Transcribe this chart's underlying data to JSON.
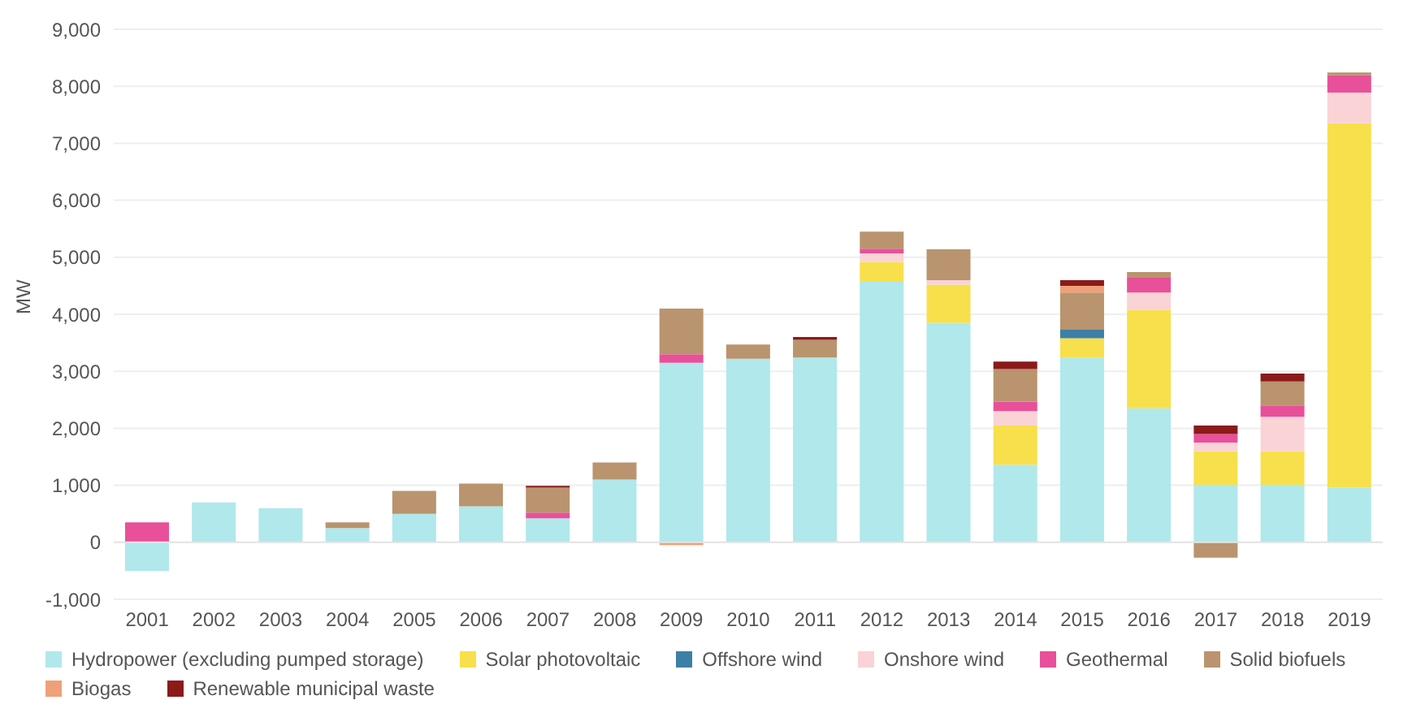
{
  "chart_data": {
    "type": "bar",
    "stacked": true,
    "ylabel": "MW",
    "categories": [
      "2001",
      "2002",
      "2003",
      "2004",
      "2005",
      "2006",
      "2007",
      "2008",
      "2009",
      "2010",
      "2011",
      "2012",
      "2013",
      "2014",
      "2015",
      "2016",
      "2017",
      "2018",
      "2019"
    ],
    "series": [
      {
        "name": "Hydropower (excluding pumped storage)",
        "color": "#b0e8ec",
        "values": [
          -500,
          700,
          600,
          250,
          500,
          630,
          420,
          1100,
          3150,
          3220,
          3240,
          4570,
          3850,
          1360,
          3240,
          2350,
          1010,
          1010,
          960
        ]
      },
      {
        "name": "Solar photovoltaic",
        "color": "#f7e04b",
        "values": [
          null,
          null,
          null,
          null,
          null,
          null,
          null,
          null,
          null,
          null,
          null,
          350,
          670,
          690,
          340,
          1730,
          590,
          590,
          6390
        ]
      },
      {
        "name": "Offshore wind",
        "color": "#3d7fa6",
        "values": [
          null,
          null,
          null,
          null,
          null,
          null,
          null,
          null,
          null,
          null,
          null,
          null,
          null,
          null,
          150,
          null,
          null,
          null,
          null
        ]
      },
      {
        "name": "Onshore wind",
        "color": "#f9d3d6",
        "values": [
          null,
          null,
          null,
          null,
          null,
          null,
          null,
          null,
          null,
          null,
          null,
          150,
          80,
          250,
          null,
          300,
          150,
          600,
          540
        ]
      },
      {
        "name": "Geothermal",
        "color": "#e8509a",
        "values": [
          350,
          null,
          null,
          null,
          null,
          null,
          100,
          null,
          150,
          null,
          null,
          80,
          null,
          170,
          null,
          260,
          150,
          200,
          300
        ]
      },
      {
        "name": "Solid biofuels",
        "color": "#b9946e",
        "values": [
          null,
          null,
          null,
          100,
          400,
          400,
          440,
          300,
          800,
          250,
          310,
          300,
          540,
          570,
          650,
          100,
          -270,
          420,
          50
        ]
      },
      {
        "name": "Biogas",
        "color": "#f0a078",
        "values": [
          null,
          null,
          null,
          null,
          null,
          null,
          null,
          null,
          -50,
          null,
          null,
          null,
          null,
          null,
          120,
          null,
          null,
          null,
          null
        ]
      },
      {
        "name": "Renewable municipal waste",
        "color": "#8b1a1a",
        "values": [
          null,
          null,
          null,
          null,
          null,
          null,
          30,
          null,
          null,
          null,
          50,
          null,
          null,
          130,
          100,
          null,
          150,
          140,
          null
        ]
      }
    ],
    "ylim": [
      -1000,
      9000
    ],
    "yticks": [
      {
        "value": -1000,
        "label": "-1,000"
      },
      0,
      {
        "value": 1000,
        "label": "1,000"
      },
      {
        "value": 2000,
        "label": "2,000"
      },
      {
        "value": 3000,
        "label": "3,000"
      },
      {
        "value": 4000,
        "label": "4,000"
      },
      {
        "value": 5000,
        "label": "5,000"
      },
      {
        "value": 6000,
        "label": "6,000"
      },
      {
        "value": 7000,
        "label": "7,000"
      },
      {
        "value": 8000,
        "label": "8,000"
      },
      {
        "value": 9000,
        "label": "9,000"
      }
    ],
    "grid": "y",
    "legend": "bottom"
  }
}
